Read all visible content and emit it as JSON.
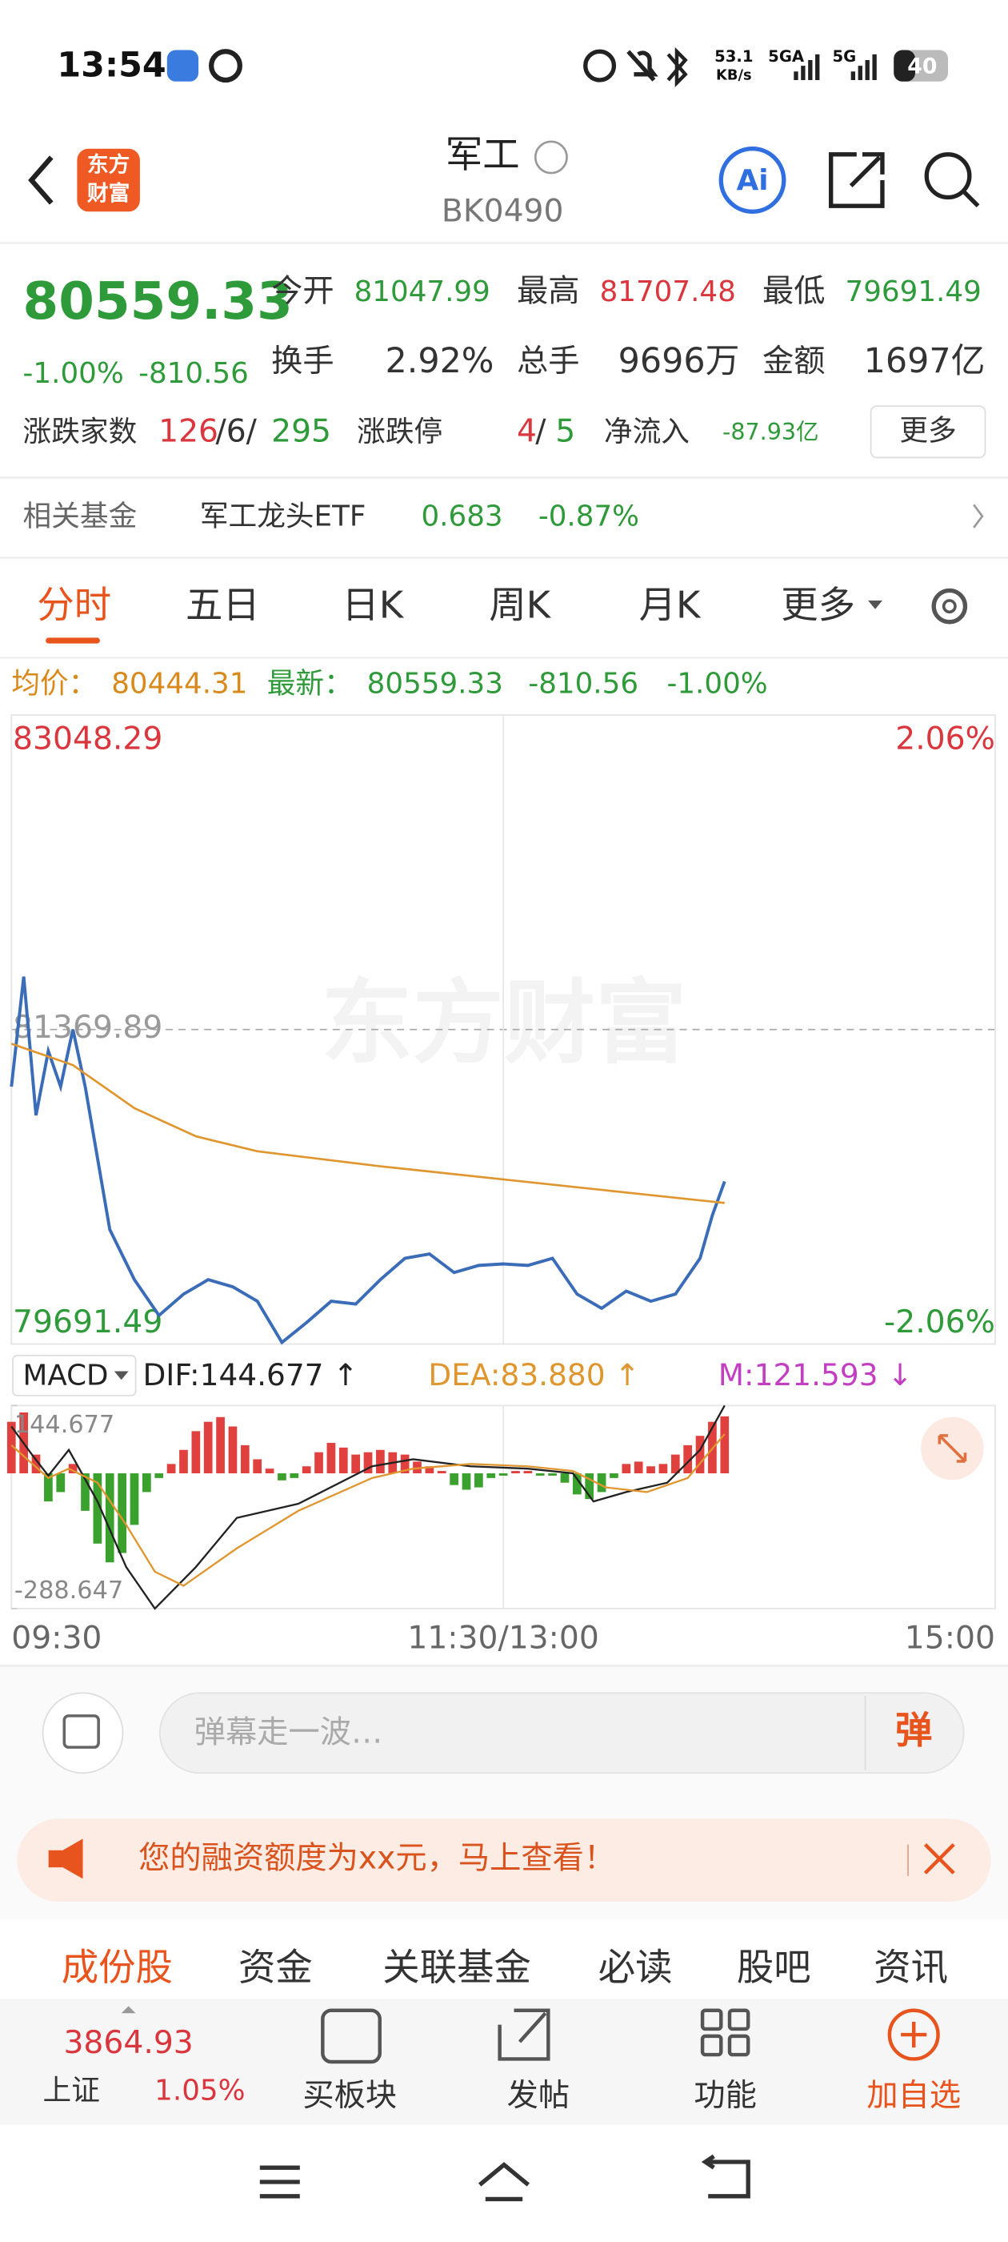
{
  "status_bar": {
    "time": "13:54",
    "net_speed": "53.1",
    "net_unit": "KB/s",
    "signal_1": "5GA",
    "signal_2": "5G",
    "battery": "40"
  },
  "header": {
    "logo": [
      "东方",
      "财富"
    ],
    "title": "军工",
    "code": "BK0490",
    "ai": "Ai"
  },
  "quote": {
    "price": "80559.33",
    "change_pct": "-1.00%",
    "change": "-810.56",
    "stats": [
      {
        "label": "今开",
        "value": "81047.99"
      },
      {
        "label": "最高",
        "value": "81707.48"
      },
      {
        "label": "最低",
        "value": "79691.49"
      },
      {
        "label": "换手",
        "value": "2.92%"
      },
      {
        "label": "总手",
        "value": "9696万"
      },
      {
        "label": "金额",
        "value": "1697亿"
      }
    ],
    "breadth_label": "涨跌家数",
    "breadth": [
      "126",
      "/6/",
      "295"
    ],
    "limit_label": "涨跌停",
    "limits": [
      "4",
      "/",
      "5"
    ],
    "inflow_label": "净流入",
    "inflow": "-87.93亿",
    "more": "更多"
  },
  "fund": {
    "label": "相关基金",
    "name": "军工龙头ETF",
    "price": "0.683",
    "change": "-0.87%"
  },
  "tabs": [
    "分时",
    "五日",
    "日K",
    "周K",
    "月K",
    "更多"
  ],
  "summary": {
    "avg_label": "均价：",
    "avg": "80444.31",
    "latest_label": "最新：",
    "latest": "80559.33",
    "change": "-810.56",
    "change_pct": "-1.00%"
  },
  "chart_data": [
    {
      "type": "line",
      "watermark": "东方财富",
      "grid": true,
      "xlim": [
        0,
        240
      ],
      "xticks": [
        {
          "value": 0,
          "label": "09:30"
        },
        {
          "value": 120,
          "label": "11:30/13:00"
        },
        {
          "value": 240,
          "label": "15:00"
        }
      ],
      "ylim": [
        79691.49,
        83048.29
      ],
      "yticks": [
        83048.29,
        81369.89,
        79691.49
      ],
      "y2lim": [
        -2.06,
        2.06
      ],
      "y2ticks": [
        {
          "value": 2.06,
          "label": "2.06%"
        },
        {
          "value": -2.06,
          "label": "-2.06%"
        }
      ],
      "series": [
        {
          "color": "#3b6cb7",
          "x": [
            0,
            3,
            6,
            9,
            12,
            15,
            18,
            24,
            30,
            36,
            42,
            48,
            54,
            60,
            66,
            72,
            78,
            84,
            90,
            96,
            102,
            108,
            114,
            120,
            126,
            132,
            138,
            144,
            150,
            156,
            162,
            168,
            171,
            174
          ],
          "values": [
            81065,
            81652,
            80912,
            81255,
            81065,
            81370,
            81065,
            80302,
            80035,
            79844,
            79958,
            80035,
            79997,
            79920,
            79700,
            79806,
            79920,
            79905,
            80035,
            80149,
            80172,
            80073,
            80111,
            80119,
            80111,
            80149,
            79958,
            79882,
            79974,
            79920,
            79958,
            80149,
            80378,
            80559.33
          ]
        },
        {
          "color": "#e0962f",
          "x": [
            0,
            15,
            30,
            45,
            60,
            90,
            120,
            150,
            174
          ],
          "values": [
            81294,
            81180,
            80950,
            80800,
            80720,
            80640,
            80570,
            80500,
            80444.31
          ]
        }
      ]
    },
    {
      "type": "macd",
      "indicator": "MACD",
      "dif_label": "DIF:144.677 ↑",
      "dea_label": "DEA:83.880 ↑",
      "m_label": "M:121.593 ↓",
      "ylim": [
        -288.647,
        144.677
      ],
      "yticks": [
        144.677,
        -288.647
      ],
      "histogram": {
        "colors": [
          "#e0413f",
          "#3aa02e"
        ],
        "x": [
          0,
          3,
          6,
          9,
          12,
          15,
          18,
          21,
          24,
          27,
          30,
          33,
          36,
          39,
          42,
          45,
          48,
          51,
          54,
          57,
          60,
          63,
          66,
          69,
          72,
          75,
          78,
          81,
          84,
          87,
          90,
          93,
          96,
          99,
          102,
          105,
          108,
          111,
          114,
          117,
          120,
          123,
          126,
          129,
          132,
          135,
          138,
          141,
          144,
          147,
          150,
          153,
          156,
          159,
          162,
          165,
          168,
          171,
          174
        ],
        "values": [
          110,
          130,
          40,
          -60,
          -40,
          20,
          -80,
          -150,
          -190,
          -170,
          -110,
          -40,
          -10,
          20,
          50,
          90,
          110,
          120,
          100,
          60,
          30,
          10,
          -15,
          -10,
          15,
          45,
          65,
          55,
          40,
          45,
          50,
          45,
          40,
          25,
          15,
          5,
          -25,
          -35,
          -30,
          -10,
          -5,
          5,
          5,
          -5,
          -5,
          -20,
          -45,
          -55,
          -40,
          -10,
          20,
          25,
          15,
          20,
          40,
          60,
          80,
          110,
          121.593
        ]
      },
      "series": [
        {
          "color": "#222222",
          "x": [
            0,
            5,
            9,
            14,
            21,
            28,
            35,
            45,
            55,
            70,
            88,
            98,
            112,
            126,
            137,
            142,
            150,
            160,
            168,
            174
          ],
          "values": [
            100,
            40,
            -5,
            50,
            -60,
            -200,
            -288.647,
            -200,
            -95,
            -65,
            15,
            30,
            15,
            10,
            0,
            -60,
            -40,
            -20,
            50,
            144.677
          ]
        },
        {
          "color": "#e0962f",
          "x": [
            0,
            9,
            14,
            21,
            28,
            35,
            42,
            55,
            70,
            88,
            98,
            112,
            126,
            137,
            145,
            155,
            165,
            174
          ],
          "values": [
            60,
            -10,
            10,
            -20,
            -110,
            -210,
            -240,
            -160,
            -80,
            -10,
            10,
            20,
            15,
            5,
            -30,
            -40,
            -10,
            83.88
          ]
        }
      ]
    }
  ],
  "comment_bar": {
    "placeholder": "弹幕走一波…",
    "button": "弹"
  },
  "banner": {
    "text": "您的融资额度为xx元，马上查看！"
  },
  "section_tabs": [
    "成份股",
    "资金",
    "关联基金",
    "必读",
    "股吧",
    "资讯"
  ],
  "bottom_nav": {
    "index_value": "3864.93",
    "index_name": "上证",
    "index_change": "1.05%",
    "items": [
      "买板块",
      "发帖",
      "功能",
      "加自选"
    ]
  }
}
